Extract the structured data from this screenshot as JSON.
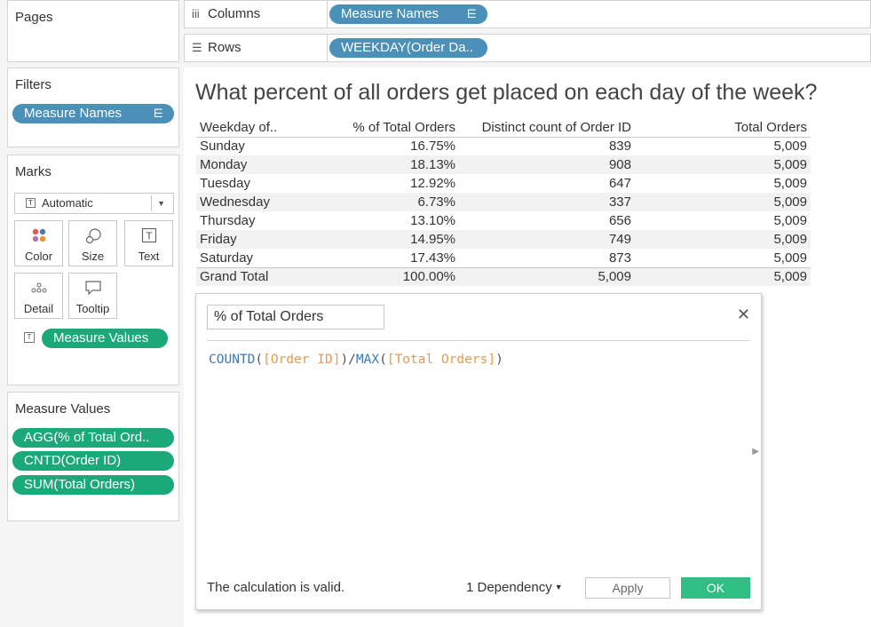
{
  "panels": {
    "pages": {
      "title": "Pages"
    },
    "filters": {
      "title": "Filters",
      "pills": [
        "Measure Names"
      ]
    },
    "marks": {
      "title": "Marks",
      "mark_type": "Automatic",
      "buttons": [
        "Color",
        "Size",
        "Text",
        "Detail",
        "Tooltip"
      ],
      "pill": "Measure Values"
    },
    "measure_values": {
      "title": "Measure Values",
      "pills": [
        "AGG(% of Total Ord..",
        "CNTD(Order ID)",
        "SUM(Total Orders)"
      ]
    }
  },
  "shelves": {
    "columns": {
      "label": "Columns",
      "pill": "Measure Names"
    },
    "rows": {
      "label": "Rows",
      "pill": "WEEKDAY(Order Da.."
    }
  },
  "view": {
    "title": "What percent of all orders get placed on each day of the week?",
    "table": {
      "headers": [
        "Weekday of..",
        "% of Total Orders",
        "Distinct count of Order ID",
        "Total Orders"
      ],
      "rows": [
        [
          "Sunday",
          "16.75%",
          "839",
          "5,009"
        ],
        [
          "Monday",
          "18.13%",
          "908",
          "5,009"
        ],
        [
          "Tuesday",
          "12.92%",
          "647",
          "5,009"
        ],
        [
          "Wednesday",
          "6.73%",
          "337",
          "5,009"
        ],
        [
          "Thursday",
          "13.10%",
          "656",
          "5,009"
        ],
        [
          "Friday",
          "14.95%",
          "749",
          "5,009"
        ],
        [
          "Saturday",
          "17.43%",
          "873",
          "5,009"
        ]
      ],
      "total": [
        "Grand Total",
        "100.00%",
        "5,009",
        "5,009"
      ]
    }
  },
  "calc_dialog": {
    "name": "% of Total Orders",
    "formula": {
      "fn1": "COUNTD",
      "open1": "(",
      "field1": "[Order ID]",
      "close1": ")",
      "divide": "/",
      "fn2": "MAX",
      "open2": "(",
      "field2": "[Total Orders]",
      "close2": ")"
    },
    "status": "The calculation is valid.",
    "dependency": "1 Dependency",
    "apply_label": "Apply",
    "ok_label": "OK"
  }
}
